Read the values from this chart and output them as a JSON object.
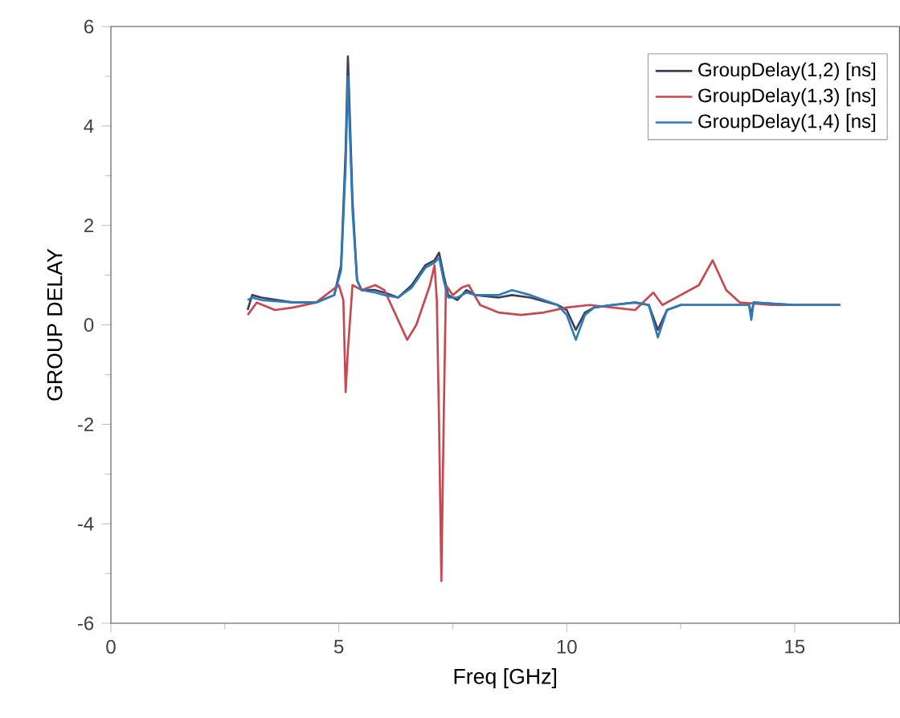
{
  "chart_data": {
    "type": "line",
    "xlabel": "Freq [GHz]",
    "ylabel": "GROUP DELAY",
    "xlim": [
      0,
      17.3
    ],
    "xticks": [
      0,
      5,
      10,
      15
    ],
    "ylim": [
      -6,
      6
    ],
    "yticks": [
      -6,
      -4,
      -2,
      0,
      2,
      4,
      6
    ],
    "legend": "top right",
    "marker": "none",
    "line_style": "solid",
    "series": [
      {
        "name": "GroupDelay(1,2) [ns]",
        "color": "#3c3f55",
        "x": [
          3.0,
          3.1,
          3.3,
          4.0,
          4.5,
          4.9,
          5.05,
          5.15,
          5.2,
          5.3,
          5.4,
          5.5,
          5.8,
          6.0,
          6.3,
          6.6,
          6.9,
          7.1,
          7.2,
          7.3,
          7.4,
          7.6,
          7.8,
          8.0,
          8.5,
          8.8,
          9.2,
          9.8,
          10.0,
          10.2,
          10.4,
          10.6,
          11.0,
          11.5,
          11.8,
          12.0,
          12.2,
          12.5,
          13.0,
          14.0,
          14.05,
          14.1,
          15.0,
          16.0
        ],
        "values": [
          0.3,
          0.6,
          0.55,
          0.45,
          0.45,
          0.6,
          1.2,
          3.5,
          5.4,
          2.5,
          0.9,
          0.7,
          0.7,
          0.65,
          0.55,
          0.8,
          1.2,
          1.3,
          1.45,
          1.0,
          0.6,
          0.5,
          0.7,
          0.6,
          0.55,
          0.6,
          0.55,
          0.4,
          0.3,
          -0.1,
          0.25,
          0.35,
          0.4,
          0.45,
          0.4,
          -0.1,
          0.3,
          0.4,
          0.4,
          0.4,
          0.2,
          0.45,
          0.4,
          0.4
        ]
      },
      {
        "name": "GroupDelay(1,3) [ns]",
        "color": "#c8484f",
        "x": [
          3.0,
          3.2,
          3.6,
          4.0,
          4.5,
          5.0,
          5.1,
          5.15,
          5.2,
          5.3,
          5.5,
          5.8,
          6.0,
          6.3,
          6.5,
          6.7,
          7.0,
          7.1,
          7.15,
          7.2,
          7.25,
          7.3,
          7.35,
          7.5,
          7.7,
          7.85,
          8.1,
          8.5,
          9.0,
          9.5,
          10.0,
          10.5,
          11.0,
          11.5,
          11.9,
          12.1,
          12.5,
          12.9,
          13.2,
          13.5,
          13.8,
          14.5,
          16.0
        ],
        "values": [
          0.2,
          0.45,
          0.3,
          0.35,
          0.45,
          0.8,
          0.5,
          -1.35,
          -0.5,
          0.8,
          0.7,
          0.8,
          0.7,
          0.1,
          -0.3,
          0.0,
          0.8,
          1.2,
          0.5,
          -2.0,
          -5.15,
          -2.0,
          0.8,
          0.6,
          0.75,
          0.8,
          0.4,
          0.25,
          0.2,
          0.25,
          0.35,
          0.4,
          0.35,
          0.3,
          0.65,
          0.4,
          0.6,
          0.8,
          1.3,
          0.7,
          0.45,
          0.4,
          0.4
        ]
      },
      {
        "name": "GroupDelay(1,4) [ns]",
        "color": "#2f7ab8",
        "x": [
          3.0,
          3.1,
          3.3,
          4.0,
          4.5,
          4.9,
          5.05,
          5.15,
          5.2,
          5.3,
          5.4,
          5.5,
          5.8,
          6.0,
          6.3,
          6.6,
          6.9,
          7.1,
          7.2,
          7.3,
          7.4,
          7.6,
          7.8,
          8.0,
          8.5,
          8.8,
          9.2,
          9.8,
          10.0,
          10.2,
          10.4,
          10.6,
          11.0,
          11.5,
          11.8,
          12.0,
          12.2,
          12.5,
          13.0,
          14.0,
          14.05,
          14.1,
          15.0,
          16.0
        ],
        "values": [
          0.5,
          0.55,
          0.5,
          0.45,
          0.45,
          0.6,
          1.1,
          3.2,
          5.0,
          2.3,
          0.9,
          0.7,
          0.65,
          0.6,
          0.55,
          0.75,
          1.15,
          1.25,
          1.35,
          0.9,
          0.55,
          0.55,
          0.65,
          0.6,
          0.6,
          0.7,
          0.6,
          0.4,
          0.2,
          -0.3,
          0.2,
          0.35,
          0.4,
          0.45,
          0.4,
          -0.25,
          0.3,
          0.4,
          0.4,
          0.4,
          0.1,
          0.45,
          0.4,
          0.4
        ]
      }
    ]
  }
}
